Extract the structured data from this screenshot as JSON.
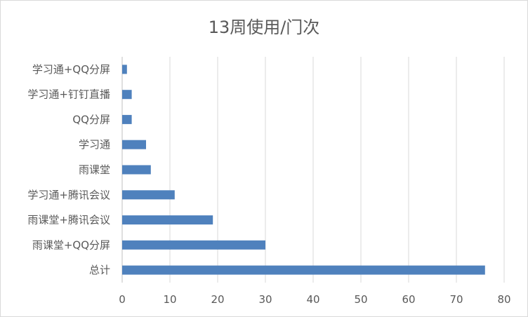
{
  "chart_data": {
    "type": "bar",
    "orientation": "horizontal",
    "title": "13周使用/门次",
    "categories": [
      "学习通+QQ分屏",
      "学习通+钉钉直播",
      "QQ分屏",
      "学习通",
      "雨课堂",
      "学习通+腾讯会议",
      "雨课堂+腾讯会议",
      "雨课堂+QQ分屏",
      "总计"
    ],
    "values": [
      1,
      2,
      2,
      5,
      6,
      11,
      19,
      30,
      76
    ],
    "xlim": [
      0,
      80
    ],
    "xticks": [
      "0",
      "10",
      "20",
      "30",
      "40",
      "50",
      "60",
      "70",
      "80"
    ],
    "grid": true,
    "legend": "none",
    "bar_color": "#4f81bd",
    "grid_color": "#d9d9d9"
  }
}
